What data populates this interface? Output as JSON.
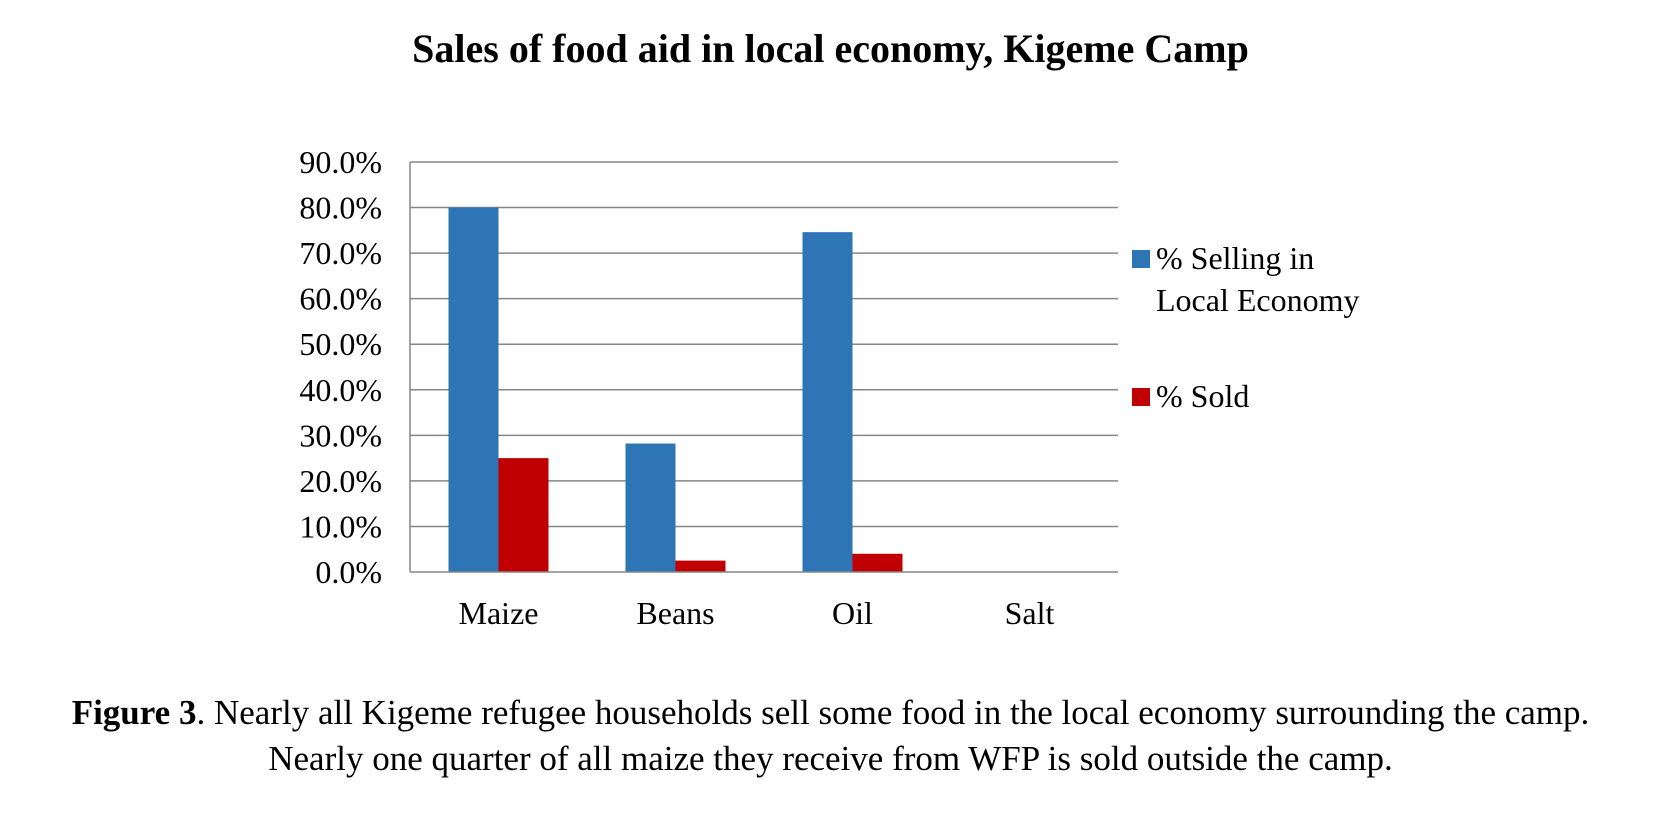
{
  "chart_data": {
    "type": "bar",
    "title": "Sales of food aid in local economy, Kigeme Camp",
    "categories": [
      "Maize",
      "Beans",
      "Oil",
      "Salt"
    ],
    "series": [
      {
        "name": "% Selling in Local Economy",
        "name_lines": [
          "% Selling in",
          "Local Economy"
        ],
        "color": "#2E75B6",
        "values": [
          80.0,
          28.2,
          74.6,
          0.0
        ]
      },
      {
        "name": "% Sold",
        "name_lines": [
          "% Sold"
        ],
        "color": "#C00000",
        "values": [
          25.0,
          2.5,
          4.0,
          0.0
        ]
      }
    ],
    "ylim": [
      0,
      90
    ],
    "yticks": [
      "0.0%",
      "10.0%",
      "20.0%",
      "30.0%",
      "40.0%",
      "50.0%",
      "60.0%",
      "70.0%",
      "80.0%",
      "90.0%"
    ],
    "grid": true,
    "legend": "right"
  },
  "caption": {
    "label": "Figure 3",
    "text": ". Nearly all Kigeme refugee households sell some food in the local economy surrounding the camp. Nearly one quarter of all maize they receive from WFP is sold outside the camp."
  }
}
